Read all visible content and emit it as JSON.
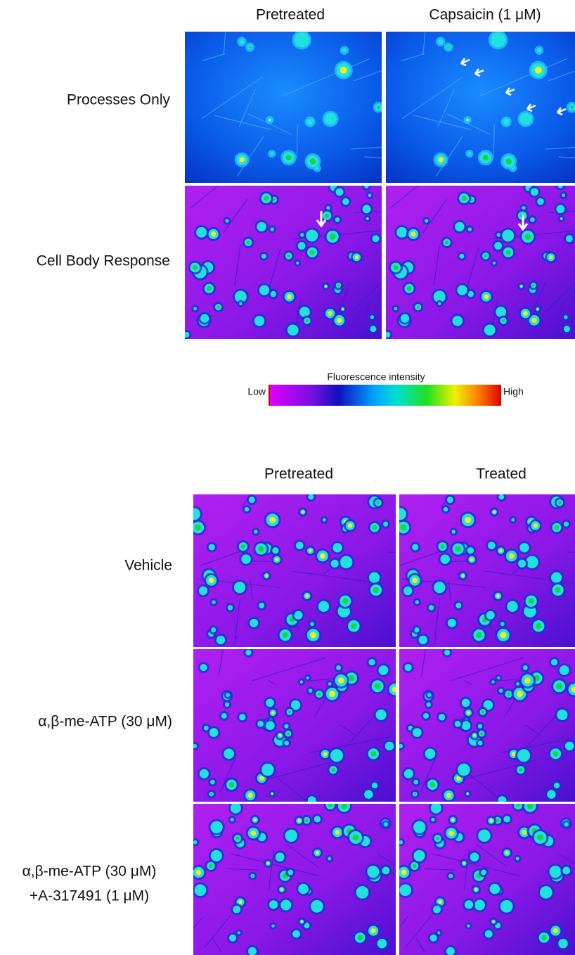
{
  "top_panel": {
    "columns": [
      "Pretreated",
      "Capsaicin (1 μM)"
    ],
    "rows": [
      "Processes Only",
      "Cell Body Response"
    ]
  },
  "colorbar": {
    "title": "Fluorescence  intensity",
    "low": "Low",
    "high": "High"
  },
  "bottom_panel": {
    "columns": [
      "Pretreated",
      "Treated"
    ],
    "rows": [
      "Vehicle",
      "α,β-me-ATP (30 μM)",
      [
        "α,β-me-ATP (30 μM)",
        "+A-317491 (1 μM)"
      ]
    ]
  }
}
